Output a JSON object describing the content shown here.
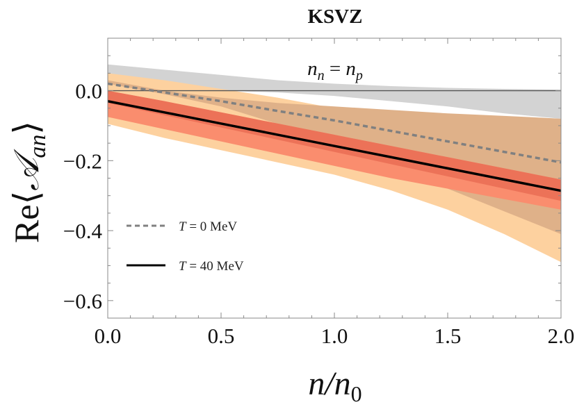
{
  "chart_data": {
    "type": "line",
    "title": "KSVZ",
    "xlabel": "n/n0",
    "ylabel": "Re⟨𝒜an⟩",
    "xlim": [
      0.0,
      2.0
    ],
    "ylim": [
      -0.65,
      0.15
    ],
    "x_ticks": [
      "0.0",
      "0.5",
      "1.0",
      "1.5",
      "2.0"
    ],
    "y_ticks": [
      "0.0",
      "−0.2",
      "−0.4",
      "−0.6"
    ],
    "annotation": "n_n = n_p",
    "legend_placement": "bottom-left",
    "grid": false,
    "x": [
      0.0,
      0.25,
      0.5,
      0.75,
      1.0,
      1.25,
      1.5,
      1.75,
      2.0
    ],
    "series": [
      {
        "name": "T = 0 MeV",
        "style": "dashed",
        "color": "#808080",
        "values": [
          0.02,
          -0.005,
          -0.03,
          -0.058,
          -0.085,
          -0.115,
          -0.145,
          -0.175,
          -0.205
        ]
      },
      {
        "name": "T = 40 MeV",
        "style": "solid",
        "color": "#000000",
        "values": [
          -0.03,
          -0.062,
          -0.094,
          -0.126,
          -0.158,
          -0.19,
          -0.222,
          -0.254,
          -0.286
        ]
      }
    ],
    "bands": [
      {
        "color": "#d3d3d3",
        "upper": [
          0.075,
          0.06,
          0.045,
          0.03,
          0.02,
          0.013,
          0.008,
          0.005,
          0.003
        ],
        "lower": [
          0.0,
          0.0,
          0.0,
          -0.005,
          -0.015,
          -0.03,
          -0.045,
          -0.065,
          -0.08
        ]
      },
      {
        "color": "#fdd19f",
        "upper": [
          0.05,
          0.03,
          0.005,
          -0.02,
          -0.05,
          -0.075,
          -0.105,
          -0.135,
          -0.165
        ],
        "lower": [
          -0.095,
          -0.135,
          -0.17,
          -0.205,
          -0.24,
          -0.285,
          -0.34,
          -0.41,
          -0.49
        ]
      },
      {
        "color": "#dfb189",
        "upper": [
          0.03,
          0.0,
          -0.02,
          -0.035,
          -0.045,
          -0.055,
          -0.065,
          -0.072,
          -0.08
        ],
        "lower": [
          0.02,
          -0.01,
          -0.045,
          -0.095,
          -0.15,
          -0.21,
          -0.28,
          -0.345,
          -0.41
        ]
      },
      {
        "color": "#fa8d6e",
        "upper": [
          0.0,
          -0.03,
          -0.062,
          -0.094,
          -0.126,
          -0.158,
          -0.19,
          -0.222,
          -0.254
        ],
        "lower": [
          -0.075,
          -0.11,
          -0.145,
          -0.18,
          -0.215,
          -0.25,
          -0.28,
          -0.31,
          -0.34
        ]
      },
      {
        "color": "#ec7258",
        "upper": [
          0.0,
          -0.03,
          -0.062,
          -0.094,
          -0.126,
          -0.158,
          -0.19,
          -0.222,
          -0.254
        ],
        "lower": [
          -0.035,
          -0.07,
          -0.105,
          -0.14,
          -0.175,
          -0.21,
          -0.245,
          -0.28,
          -0.315
        ]
      }
    ]
  }
}
